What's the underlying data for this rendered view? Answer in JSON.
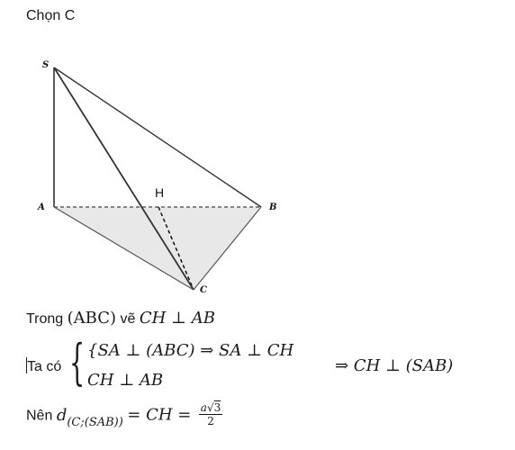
{
  "answer": "Chọn C",
  "figure": {
    "points": {
      "S": "S",
      "A": "A",
      "B": "B",
      "C": "C",
      "H": "H"
    }
  },
  "line1": {
    "prefix": "Trong",
    "plane": "(ABC)",
    "verb": "vẽ",
    "statement": "CH ⊥ AB"
  },
  "system": {
    "label": "Ta có",
    "row1_open": "{",
    "row1": "SA ⊥ (ABC) ⇒ SA ⊥ CH",
    "row2": "CH ⊥ AB",
    "conclusion": "⇒ CH ⊥ (SAB)"
  },
  "line3": {
    "prefix": "Nên",
    "d": "d",
    "subscript": "(C;(SAB))",
    "equals": "= CH =",
    "frac_num_a": "a",
    "frac_num_sqrt": "√",
    "frac_num_arg": "3",
    "frac_den": "2"
  }
}
